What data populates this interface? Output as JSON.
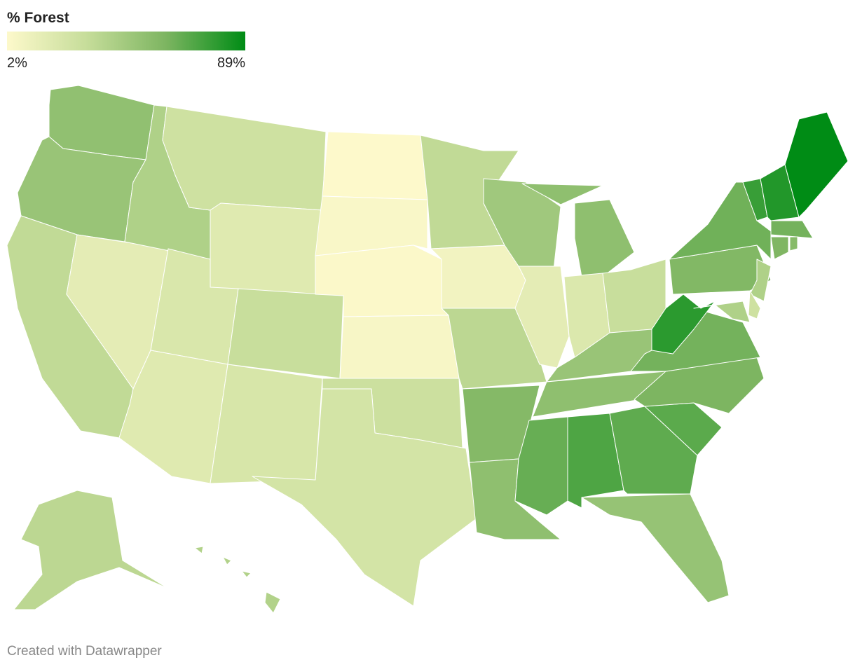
{
  "chart_data": {
    "type": "choropleth",
    "title": "% Forest",
    "scale": {
      "min": {
        "value": 2,
        "label": "2%"
      },
      "max": {
        "value": 89,
        "label": "89%"
      },
      "colors": [
        "#fdf9cb",
        "#c6dd9a",
        "#7db561",
        "#008c15"
      ]
    },
    "values": [
      52,
      49,
      33,
      15,
      40,
      27,
      18,
      21,
      18,
      30,
      22,
      2,
      4,
      3,
      5,
      28,
      24,
      33,
      8,
      35,
      57,
      53,
      46,
      15,
      53,
      20,
      30,
      49,
      53,
      65,
      71,
      67,
      50,
      68,
      60,
      62,
      79,
      58,
      63,
      76,
      81,
      89,
      62,
      59,
      56,
      40,
      27,
      40,
      35,
      39
    ],
    "credit": "Created with Datawrapper"
  }
}
